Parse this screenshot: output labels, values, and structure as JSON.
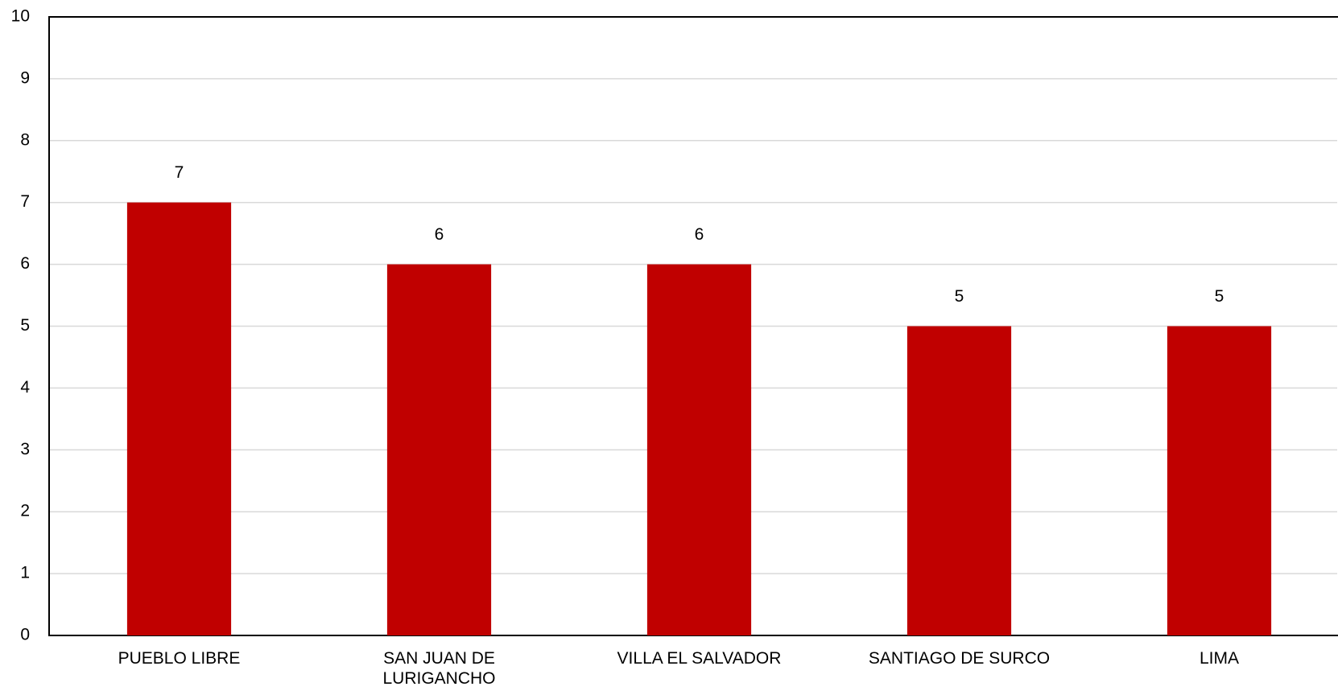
{
  "chart_data": {
    "type": "bar",
    "categories": [
      "PUEBLO LIBRE",
      "SAN JUAN DE LURIGANCHO",
      "VILLA EL SALVADOR",
      "SANTIAGO DE SURCO",
      "LIMA"
    ],
    "values": [
      7,
      6,
      6,
      5,
      5
    ],
    "color": "#c00000",
    "ylim": [
      0,
      10
    ],
    "yticks": [
      0,
      1,
      2,
      3,
      4,
      5,
      6,
      7,
      8,
      9,
      10
    ],
    "grid": true
  }
}
